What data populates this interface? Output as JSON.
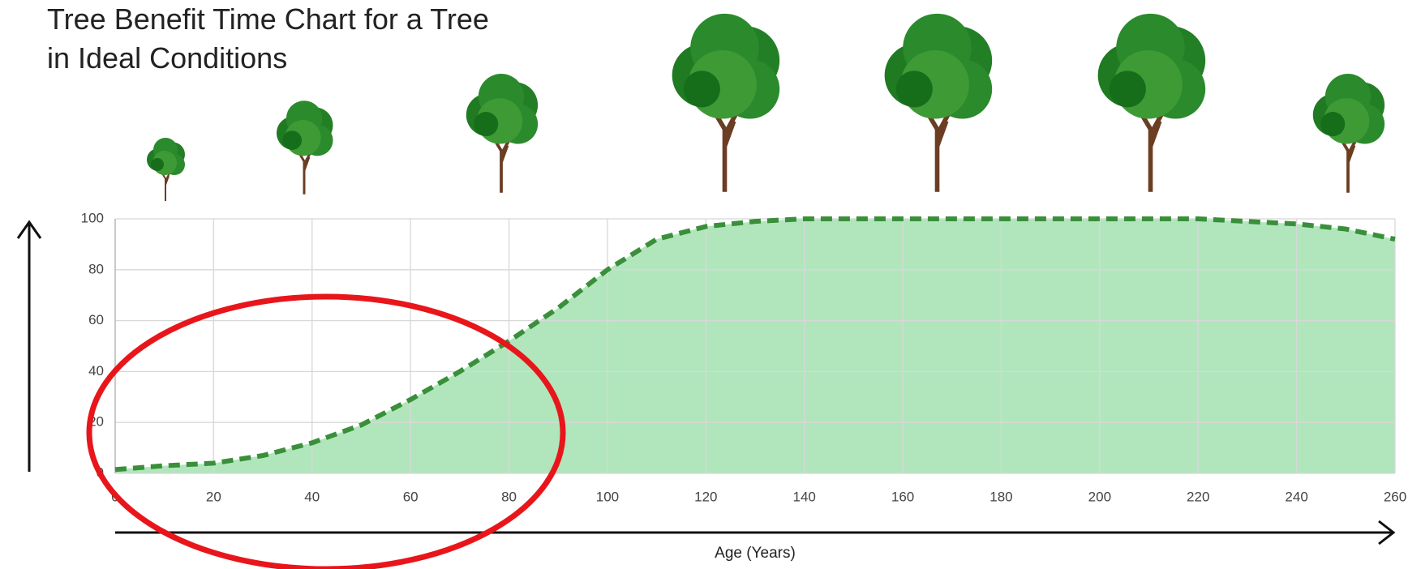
{
  "chart_data": {
    "type": "area",
    "title": "Tree Benefit Time Chart for a Tree in Ideal Conditions",
    "xlabel": "Age (Years)",
    "x": [
      0,
      10,
      20,
      30,
      40,
      50,
      60,
      70,
      80,
      90,
      100,
      110,
      120,
      130,
      140,
      150,
      160,
      170,
      180,
      190,
      200,
      210,
      220,
      230,
      240,
      250,
      260
    ],
    "values": [
      1.5,
      3,
      4,
      7,
      12,
      19,
      29,
      40,
      52,
      65,
      80,
      92,
      97,
      99,
      100,
      100,
      100,
      100,
      100,
      100,
      100,
      100,
      100,
      99,
      98,
      96,
      92
    ],
    "color": "#3a8f3a",
    "fill": "#a9e3b5",
    "xlim": [
      0,
      260
    ],
    "xticks": [
      0,
      20,
      40,
      60,
      80,
      100,
      120,
      140,
      160,
      180,
      200,
      220,
      240,
      260
    ],
    "ylim": [
      0,
      100
    ],
    "yticks": [
      0,
      20,
      40,
      60,
      80,
      100
    ],
    "grid": true
  }
}
